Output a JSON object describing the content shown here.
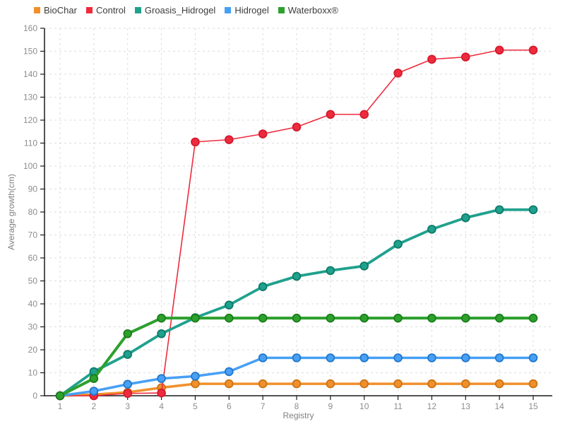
{
  "chart_data": {
    "type": "line",
    "title": "",
    "xlabel": "Registry",
    "ylabel": "Average growth(cm)",
    "x": [
      1,
      2,
      3,
      4,
      5,
      6,
      7,
      8,
      9,
      10,
      11,
      12,
      13,
      14,
      15
    ],
    "xlim": [
      1,
      15
    ],
    "ylim": [
      0,
      160
    ],
    "ytick_step": 10,
    "grid": true,
    "grid_style": "dashed",
    "legend_position": "top-left",
    "series": [
      {
        "name": "BioChar",
        "color": "#f0902d",
        "marker_stroke": "#cc7313",
        "line_width": 3.5,
        "values": [
          0,
          0.5,
          1.5,
          3.5,
          5.2,
          5.2,
          5.2,
          5.2,
          5.2,
          5.2,
          5.2,
          5.2,
          5.2,
          5.2,
          5.2
        ]
      },
      {
        "name": "Control",
        "color": "#ee2b3e",
        "marker_stroke": "#d41b2e",
        "line_width": 1.6,
        "values": [
          0,
          0,
          1,
          1.2,
          110.5,
          111.5,
          114,
          117,
          122.5,
          122.5,
          140.5,
          146.5,
          147.5,
          150.5,
          150.5
        ]
      },
      {
        "name": "Groasis_Hidrogel",
        "color": "#1fa18d",
        "marker_stroke": "#0e7a69",
        "line_width": 3.8,
        "values": [
          0,
          10.5,
          18,
          27,
          34,
          39.5,
          47.5,
          52,
          54.5,
          56.5,
          66,
          72.5,
          77.5,
          81,
          81
        ]
      },
      {
        "name": "Hidrogel",
        "color": "#47a0f4",
        "marker_stroke": "#2277cc",
        "line_width": 3.5,
        "values": [
          0,
          2,
          5,
          7.5,
          8.5,
          10.5,
          16.5,
          16.5,
          16.5,
          16.5,
          16.5,
          16.5,
          16.5,
          16.5,
          16.5
        ]
      },
      {
        "name": "Waterboxx®",
        "color": "#2da02d",
        "marker_stroke": "#1a7d1a",
        "line_width": 4,
        "values": [
          0,
          7.5,
          27,
          33.8,
          33.8,
          33.8,
          33.8,
          33.8,
          33.8,
          33.8,
          33.8,
          33.8,
          33.8,
          33.8,
          33.8
        ]
      }
    ],
    "colors": {
      "grid": "#dcdcdc",
      "axis": "#1a1a1a",
      "tick_label": "#8d8d8d",
      "axis_title": "#7f7f7f",
      "legend_text": "#3c3c3c",
      "background": "#ffffff"
    }
  }
}
